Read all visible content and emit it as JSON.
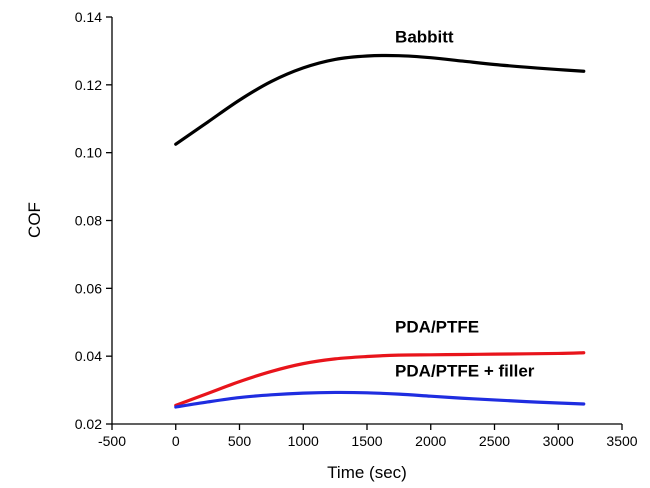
{
  "chart_data": {
    "type": "line",
    "xlabel": "Time (sec)",
    "ylabel": "COF",
    "xlim": [
      -500,
      3500
    ],
    "ylim": [
      0.02,
      0.14
    ],
    "x_ticks": [
      -500,
      0,
      500,
      1000,
      1500,
      2000,
      2500,
      3000,
      3500
    ],
    "y_ticks": [
      "0.02",
      "0.04",
      "0.06",
      "0.08",
      "0.10",
      "0.12",
      "0.14"
    ],
    "grid": false,
    "series": [
      {
        "name": "Babbitt",
        "color": "#000000",
        "x": [
          0,
          250,
          500,
          750,
          1000,
          1250,
          1500,
          1750,
          2000,
          2250,
          2500,
          2750,
          3000,
          3200
        ],
        "y": [
          0.1025,
          0.109,
          0.1155,
          0.121,
          0.125,
          0.1275,
          0.1285,
          0.1286,
          0.128,
          0.127,
          0.126,
          0.1252,
          0.1245,
          0.124
        ]
      },
      {
        "name": "PDA/PTFE",
        "color": "#e8141b",
        "x": [
          0,
          250,
          500,
          750,
          1000,
          1250,
          1500,
          1750,
          2000,
          2250,
          2500,
          2750,
          3000,
          3200
        ],
        "y": [
          0.0255,
          0.029,
          0.0325,
          0.0355,
          0.0378,
          0.0392,
          0.0399,
          0.0403,
          0.0404,
          0.0405,
          0.0406,
          0.0407,
          0.0408,
          0.041
        ]
      },
      {
        "name": "PDA/PTFE + filler",
        "color": "#1f2de0",
        "x": [
          0,
          250,
          500,
          750,
          1000,
          1250,
          1500,
          1750,
          2000,
          2250,
          2500,
          2750,
          3000,
          3200
        ],
        "y": [
          0.025,
          0.0265,
          0.0278,
          0.0286,
          0.0291,
          0.0293,
          0.0292,
          0.0288,
          0.0282,
          0.0276,
          0.0271,
          0.0266,
          0.0262,
          0.0259
        ]
      }
    ]
  }
}
